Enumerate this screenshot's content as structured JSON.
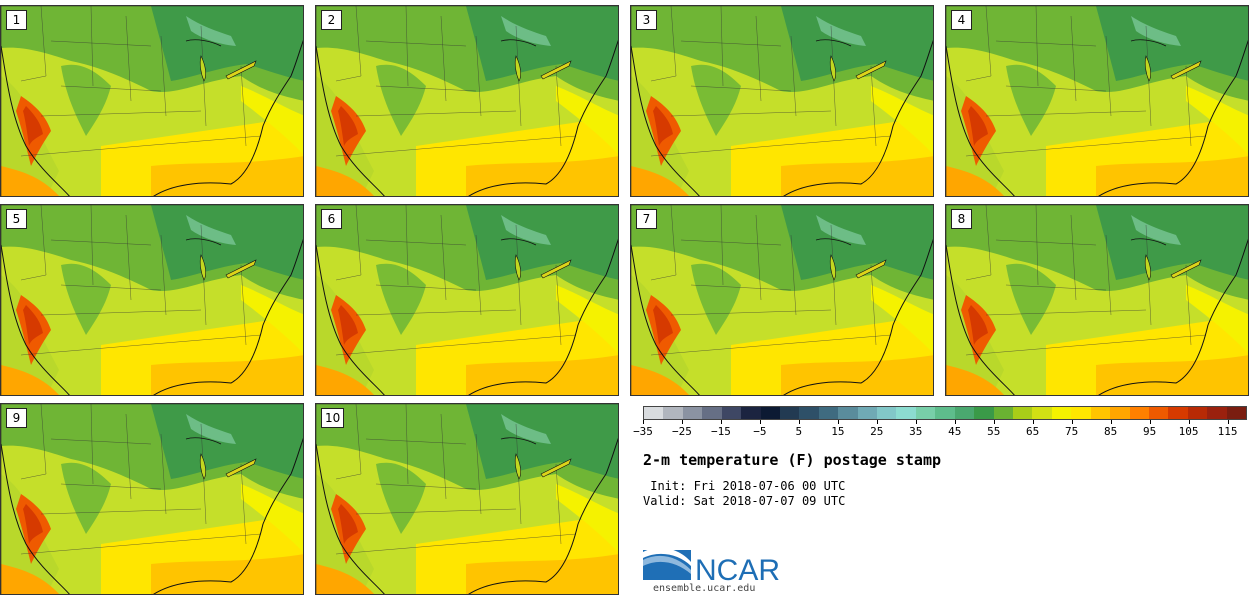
{
  "panels": [
    {
      "label": "1"
    },
    {
      "label": "2"
    },
    {
      "label": "3"
    },
    {
      "label": "4"
    },
    {
      "label": "5"
    },
    {
      "label": "6"
    },
    {
      "label": "7"
    },
    {
      "label": "8"
    },
    {
      "label": "9"
    },
    {
      "label": "10"
    }
  ],
  "colorbar": {
    "colors": [
      "#d9dcdf",
      "#b1b6be",
      "#8b93a2",
      "#666f85",
      "#3e4764",
      "#1b2440",
      "#0c1a33",
      "#223a52",
      "#2e5068",
      "#3f6b80",
      "#5a8c9c",
      "#70aab5",
      "#82c7c8",
      "#8cdcd0",
      "#78cfa9",
      "#5ebd8c",
      "#4aa86f",
      "#3a9a48",
      "#6ab232",
      "#a9cd18",
      "#d2e014",
      "#f5f200",
      "#ffe600",
      "#ffc400",
      "#ffa600",
      "#ff8000",
      "#ef5a00",
      "#d63a00",
      "#b82a05",
      "#9b210e",
      "#7a1d10"
    ],
    "tick_labels": [
      "−35",
      "−25",
      "−15",
      "−5",
      "5",
      "15",
      "25",
      "35",
      "45",
      "55",
      "65",
      "75",
      "85",
      "95",
      "105",
      "115"
    ]
  },
  "title": "2-m temperature (F) postage stamp",
  "init": " Init: Fri 2018-07-06 00 UTC",
  "valid": "Valid: Sat 2018-07-07 09 UTC",
  "logo": {
    "text": "NCAR",
    "color": "#1e6eb5"
  },
  "url": "ensemble.ucar.edu"
}
